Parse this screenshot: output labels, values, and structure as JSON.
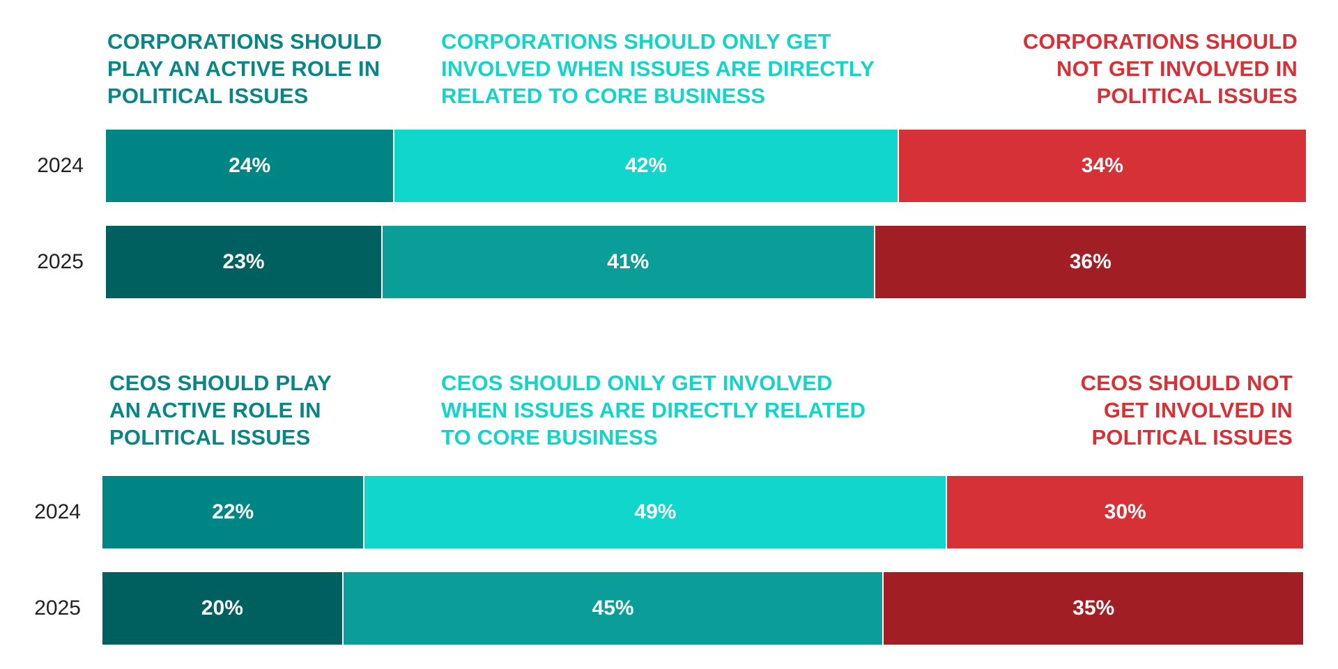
{
  "chart_data": [
    {
      "type": "bar",
      "orientation": "horizontal-stacked-100",
      "categories": [
        "2024",
        "2025"
      ],
      "series": [
        {
          "name": "CORPORATIONS SHOULD PLAY AN ACTIVE ROLE IN POLITICAL ISSUES",
          "values": [
            24,
            23
          ],
          "labels": [
            "24%",
            "23%"
          ],
          "colors": [
            "#008585",
            "#005f5f"
          ]
        },
        {
          "name": "CORPORATIONS SHOULD ONLY GET INVOLVED WHEN ISSUES ARE DIRECTLY RELATED TO CORE BUSINESS",
          "values": [
            42,
            41
          ],
          "labels": [
            "42%",
            "41%"
          ],
          "colors": [
            "#10d6cb",
            "#0b9e99"
          ]
        },
        {
          "name": "CORPORATIONS SHOULD NOT GET INVOLVED IN POLITICAL ISSUES",
          "values": [
            34,
            36
          ],
          "labels": [
            "34%",
            "36%"
          ],
          "colors": [
            "#d63136",
            "#a11f24"
          ]
        }
      ]
    },
    {
      "type": "bar",
      "orientation": "horizontal-stacked-100",
      "categories": [
        "2024",
        "2025"
      ],
      "series": [
        {
          "name": "CEOS SHOULD PLAY AN ACTIVE ROLE IN POLITICAL ISSUES",
          "values": [
            22,
            20
          ],
          "labels": [
            "22%",
            "20%"
          ],
          "colors": [
            "#008585",
            "#005f5f"
          ]
        },
        {
          "name": "CEOS SHOULD ONLY GET INVOLVED WHEN ISSUES ARE DIRECTLY RELATED TO CORE BUSINESS",
          "values": [
            49,
            45
          ],
          "labels": [
            "49%",
            "45%"
          ],
          "colors": [
            "#10d6cb",
            "#0b9e99"
          ]
        },
        {
          "name": "CEOS SHOULD NOT GET INVOLVED IN POLITICAL ISSUES",
          "values": [
            30,
            35
          ],
          "labels": [
            "30%",
            "35%"
          ],
          "colors": [
            "#d63136",
            "#a11f24"
          ]
        }
      ]
    }
  ]
}
